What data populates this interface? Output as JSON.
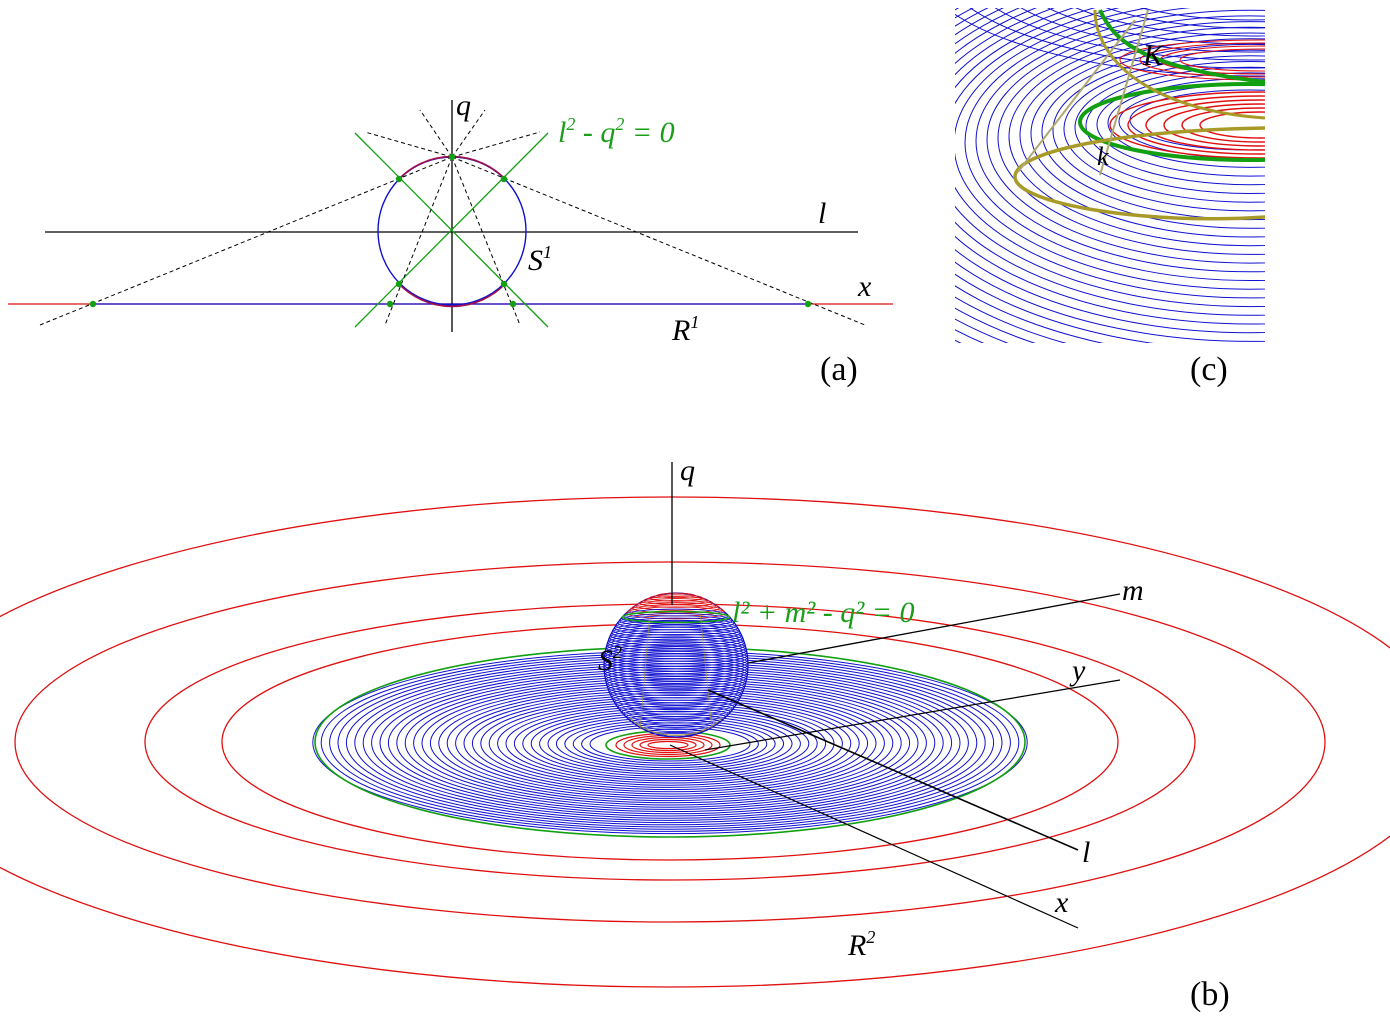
{
  "colors": {
    "blue": "#1010d0",
    "red": "#e01010",
    "green": "#12a012",
    "olive": "#a89a28",
    "purple": "#a0104a",
    "black": "#000000"
  },
  "panel_a": {
    "tag": "(a)",
    "axis_q": "q",
    "axis_l": "l",
    "axis_x": "x",
    "sphere": "S",
    "sphere_sup": "1",
    "line_space": "R",
    "line_space_sup": "1",
    "cone_l": "l",
    "cone_l_sup": "2",
    "cone_q": " - q",
    "cone_q_sup": "2",
    "cone_rest": " = 0"
  },
  "panel_b": {
    "tag": "(b)",
    "axis_q": "q",
    "axis_m": "m",
    "axis_y": "y",
    "axis_l": "l",
    "axis_x": "x",
    "sphere": "S",
    "sphere_sup": "2",
    "plane": "R",
    "plane_sup": "2",
    "cone_equation": "l² + m² - q² = 0"
  },
  "panel_c": {
    "tag": "(c)",
    "label_K": "K",
    "label_k": "k"
  }
}
